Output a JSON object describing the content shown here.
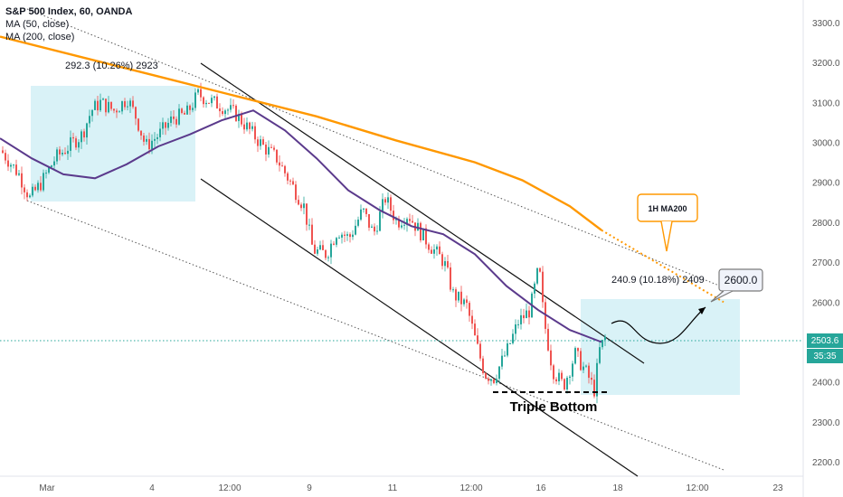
{
  "legend": {
    "title": "S&P 500 Index, 60, OANDA",
    "ma50": "MA (50, close)",
    "ma200": "MA (200, close)"
  },
  "badges": {
    "last_price": "2503.6",
    "countdown": "35:35"
  },
  "colors": {
    "up": "#26a69a",
    "down": "#ef5350",
    "ma50": "#5b3a8c",
    "ma200": "#ff9800",
    "box_fill": "#d9f2f7",
    "price_line": "#26a69a",
    "badge_price": "#26a69a",
    "badge_time": "#26a69a"
  },
  "annotations": {
    "measure1": "292.3 (10.26%) 2923",
    "measure2": "240.9 (10.18%) 2409",
    "ma200_callout": "1H MA200",
    "target": "2600.0",
    "pattern": "Triple Bottom"
  },
  "chart_data": {
    "type": "candlestick",
    "title": "S&P 500 Index, 60, OANDA",
    "ylim": [
      2170,
      3370
    ],
    "y_ticks": [
      "3300.0",
      "3200.0",
      "3100.0",
      "3000.0",
      "2900.0",
      "2800.0",
      "2700.0",
      "2600.0",
      "2500.0",
      "2400.0",
      "2300.0",
      "2200.0"
    ],
    "x_ticks": [
      "Mar",
      "4",
      "12:00",
      "9",
      "11",
      "12:00",
      "16",
      "18",
      "12:00",
      "23"
    ],
    "grid": false,
    "series": [
      {
        "name": "MA (50, close)",
        "points": [
          [
            0,
            3010
          ],
          [
            0.04,
            2960
          ],
          [
            0.08,
            2920
          ],
          [
            0.12,
            2910
          ],
          [
            0.16,
            2945
          ],
          [
            0.2,
            2990
          ],
          [
            0.24,
            3020
          ],
          [
            0.28,
            3055
          ],
          [
            0.32,
            3080
          ],
          [
            0.36,
            3030
          ],
          [
            0.4,
            2960
          ],
          [
            0.44,
            2880
          ],
          [
            0.48,
            2830
          ],
          [
            0.52,
            2790
          ],
          [
            0.56,
            2770
          ],
          [
            0.6,
            2720
          ],
          [
            0.64,
            2640
          ],
          [
            0.68,
            2580
          ],
          [
            0.72,
            2530
          ],
          [
            0.76,
            2500
          ]
        ]
      },
      {
        "name": "MA (200, close)",
        "points": [
          [
            0,
            3265
          ],
          [
            0.1,
            3215
          ],
          [
            0.2,
            3165
          ],
          [
            0.3,
            3115
          ],
          [
            0.4,
            3065
          ],
          [
            0.5,
            3005
          ],
          [
            0.6,
            2950
          ],
          [
            0.66,
            2905
          ],
          [
            0.72,
            2840
          ],
          [
            0.76,
            2780
          ]
        ]
      }
    ],
    "markers": {
      "last_price": 2503.6,
      "target": 2600.0,
      "triple_bottom_level": 2375
    }
  }
}
